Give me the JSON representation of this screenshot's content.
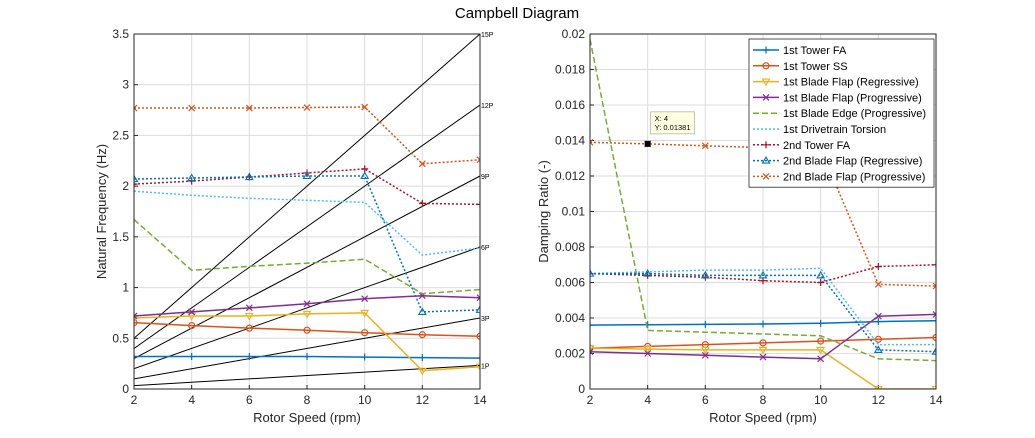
{
  "figure_title": "Campbell Diagram",
  "chart_data": [
    {
      "type": "line",
      "name": "frequency",
      "title": "",
      "xlabel": "Rotor Speed (rpm)",
      "ylabel": "Natural Frequency (Hz)",
      "xlim": [
        2,
        14
      ],
      "ylim": [
        0,
        3.5
      ],
      "xticks": [
        "2",
        "4",
        "6",
        "8",
        "10",
        "12",
        "14"
      ],
      "yticks": [
        "0",
        "0.5",
        "1",
        "1.5",
        "2",
        "2.5",
        "3",
        "3.5"
      ],
      "x": [
        2,
        4,
        6,
        8,
        10,
        12,
        14
      ],
      "per_rev_lines": [
        {
          "label": "1P",
          "mult": 1
        },
        {
          "label": "3P",
          "mult": 3
        },
        {
          "label": "6P",
          "mult": 6
        },
        {
          "label": "9P",
          "mult": 9
        },
        {
          "label": "12P",
          "mult": 12
        },
        {
          "label": "15P",
          "mult": 15
        }
      ],
      "series": [
        {
          "name": "1st Tower FA",
          "values": [
            0.32,
            0.32,
            0.32,
            0.32,
            0.315,
            0.31,
            0.305
          ]
        },
        {
          "name": "1st Tower SS",
          "values": [
            0.655,
            0.625,
            0.6,
            0.58,
            0.555,
            0.535,
            0.52
          ]
        },
        {
          "name": "1st Blade Flap (Regressive)",
          "values": [
            0.7,
            0.72,
            0.72,
            0.74,
            0.75,
            0.18,
            0.22
          ]
        },
        {
          "name": "1st Blade Flap (Progressive)",
          "values": [
            0.72,
            0.76,
            0.8,
            0.84,
            0.89,
            0.92,
            0.9
          ]
        },
        {
          "name": "1st Blade Edge (Progressive)",
          "values": [
            1.67,
            1.17,
            1.21,
            1.24,
            1.28,
            0.94,
            0.98
          ]
        },
        {
          "name": "1st Drivetrain Torsion",
          "values": [
            1.95,
            1.91,
            1.88,
            1.86,
            1.84,
            1.32,
            1.39
          ]
        },
        {
          "name": "2nd Tower FA",
          "values": [
            2.02,
            2.05,
            2.09,
            2.13,
            2.17,
            1.83,
            1.82
          ]
        },
        {
          "name": "2nd Blade Flap (Regressive)",
          "values": [
            2.07,
            2.08,
            2.09,
            2.1,
            2.1,
            0.76,
            0.78
          ]
        },
        {
          "name": "2nd Blade Flap (Progressive)",
          "values": [
            2.77,
            2.77,
            2.77,
            2.775,
            2.78,
            2.22,
            2.26
          ]
        }
      ]
    },
    {
      "type": "line",
      "name": "damping",
      "title": "",
      "xlabel": "Rotor Speed (rpm)",
      "ylabel": "Damping Ratio (-)",
      "xlim": [
        2,
        14
      ],
      "ylim": [
        0,
        0.02
      ],
      "xticks": [
        "2",
        "4",
        "6",
        "8",
        "10",
        "12",
        "14"
      ],
      "yticks": [
        "0",
        "0.002",
        "0.004",
        "0.006",
        "0.008",
        "0.01",
        "0.012",
        "0.014",
        "0.016",
        "0.018",
        "0.02"
      ],
      "x": [
        2,
        4,
        6,
        8,
        10,
        12,
        14
      ],
      "legend_position": "top-right",
      "datatip": {
        "x_text": "X: 4",
        "y_text": "Y: 0.01381",
        "x": 4,
        "y": 0.01381
      },
      "series": [
        {
          "name": "1st Tower FA",
          "values": [
            0.0036,
            0.00362,
            0.00364,
            0.00366,
            0.0037,
            0.0038,
            0.00385
          ]
        },
        {
          "name": "1st Tower SS",
          "values": [
            0.0023,
            0.0024,
            0.0025,
            0.0026,
            0.0027,
            0.0028,
            0.0029
          ]
        },
        {
          "name": "1st Blade Flap (Regressive)",
          "values": [
            0.0023,
            0.00225,
            0.0022,
            0.0022,
            0.0022,
            0.0,
            0.0
          ]
        },
        {
          "name": "1st Blade Flap (Progressive)",
          "values": [
            0.0021,
            0.002,
            0.0019,
            0.0018,
            0.0017,
            0.0041,
            0.0042
          ]
        },
        {
          "name": "1st Blade Edge (Progressive)",
          "values": [
            0.0197,
            0.0033,
            0.0032,
            0.0031,
            0.003,
            0.0017,
            0.0016
          ]
        },
        {
          "name": "1st Drivetrain Torsion",
          "values": [
            0.0065,
            0.0066,
            0.0067,
            0.0067,
            0.0068,
            0.0025,
            0.0025
          ]
        },
        {
          "name": "2nd Tower FA",
          "values": [
            0.0065,
            0.0064,
            0.0063,
            0.0061,
            0.006,
            0.0069,
            0.007
          ]
        },
        {
          "name": "2nd Blade Flap (Regressive)",
          "values": [
            0.0065,
            0.0065,
            0.0064,
            0.0064,
            0.0064,
            0.0022,
            0.0021
          ]
        },
        {
          "name": "2nd Blade Flap (Progressive)",
          "values": [
            0.0139,
            0.01381,
            0.0137,
            0.0136,
            0.0135,
            0.0059,
            0.0058
          ]
        }
      ]
    }
  ],
  "series_styles": [
    {
      "color": "#0072BD",
      "dash": "",
      "marker": "plus"
    },
    {
      "color": "#D95319",
      "dash": "",
      "marker": "circle"
    },
    {
      "color": "#EDB120",
      "dash": "",
      "marker": "triangle-down"
    },
    {
      "color": "#7E2F8E",
      "dash": "",
      "marker": "x"
    },
    {
      "color": "#77AC30",
      "dash": "6,3",
      "marker": "none"
    },
    {
      "color": "#4DBEEE",
      "dash": "2,2",
      "marker": "none"
    },
    {
      "color": "#A2142F",
      "dash": "2,2",
      "marker": "plus"
    },
    {
      "color": "#0072BD",
      "dash": "2,2",
      "marker": "triangle-up"
    },
    {
      "color": "#D95319",
      "dash": "2,2",
      "marker": "x"
    }
  ]
}
